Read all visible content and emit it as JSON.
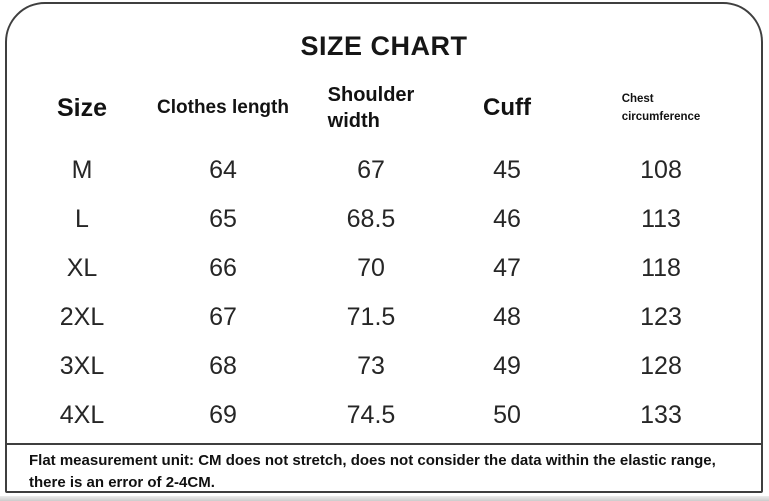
{
  "title": "SIZE CHART",
  "header": {
    "size": "Size",
    "clothes_length": "Clothes length",
    "shoulder_line1": "Shoulder",
    "shoulder_line2": "width",
    "cuff": "Cuff",
    "chest_line1": "Chest",
    "chest_line2": "circumference"
  },
  "chart_data": {
    "type": "table",
    "title": "SIZE CHART",
    "columns": [
      "Size",
      "Clothes length",
      "Shoulder width",
      "Cuff",
      "Chest circumference"
    ],
    "rows": [
      [
        "M",
        "64",
        "67",
        "45",
        "108"
      ],
      [
        "L",
        "65",
        "68.5",
        "46",
        "113"
      ],
      [
        "XL",
        "66",
        "70",
        "47",
        "118"
      ],
      [
        "2XL",
        "67",
        "71.5",
        "48",
        "123"
      ],
      [
        "3XL",
        "68",
        "73",
        "49",
        "128"
      ],
      [
        "4XL",
        "69",
        "74.5",
        "50",
        "133"
      ]
    ],
    "unit": "CM"
  },
  "footer": {
    "note_line1": "Flat measurement unit: CM does not stretch, does not consider the data within the elastic range,",
    "note_line2": "there is an error of 2-4CM."
  },
  "colors": {
    "border": "#3f3f3f",
    "text": "#1d1d1d",
    "background": "#ffffff",
    "bottom_strip": "#cccccc"
  }
}
